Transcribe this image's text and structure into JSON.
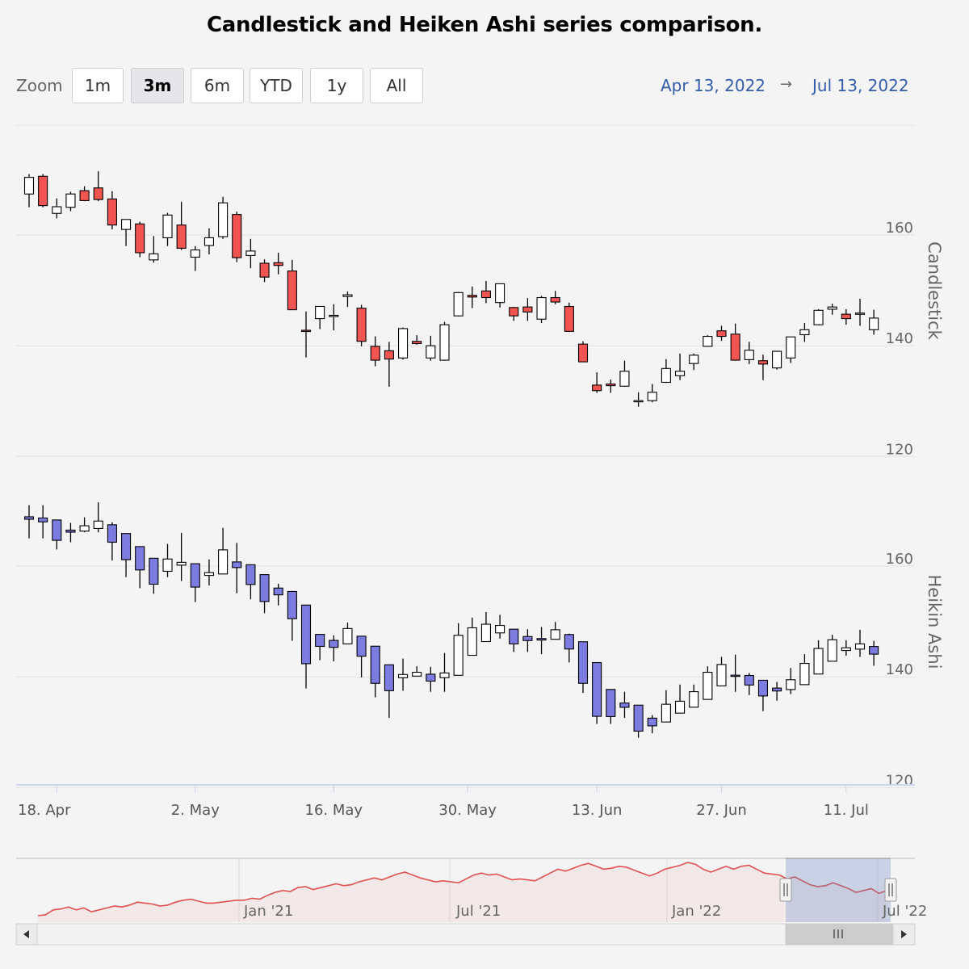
{
  "title": "Candlestick and Heiken Ashi series comparison.",
  "zoom": {
    "label": "Zoom",
    "buttons": [
      "1m",
      "3m",
      "6m",
      "YTD",
      "1y",
      "All"
    ],
    "active": "3m"
  },
  "range": {
    "from": "Apr 13, 2022",
    "arrow": "→",
    "to": "Jul 13, 2022"
  },
  "colors": {
    "down_candle": "#f25452",
    "down_ha": "#7c7ce0",
    "up": "#ffffff",
    "navigator_line": "#e05050",
    "navigator_mask": "#ccd6eb"
  },
  "chart_data": {
    "type": "candlestick",
    "panes": [
      {
        "name": "Candlestick",
        "y_ticks": [
          120,
          140,
          160
        ],
        "ylim": [
          120,
          175
        ]
      },
      {
        "name": "Heikin Ashi",
        "y_ticks": [
          120,
          140,
          160
        ],
        "ylim": [
          120,
          175
        ]
      }
    ],
    "x_ticks": [
      "18. Apr",
      "2. May",
      "16. May",
      "30. May",
      "13. Jun",
      "27. Jun",
      "11. Jul"
    ],
    "dates": [
      "2022-04-13",
      "2022-04-14",
      "2022-04-18",
      "2022-04-19",
      "2022-04-20",
      "2022-04-21",
      "2022-04-22",
      "2022-04-25",
      "2022-04-26",
      "2022-04-27",
      "2022-04-28",
      "2022-04-29",
      "2022-05-02",
      "2022-05-03",
      "2022-05-04",
      "2022-05-05",
      "2022-05-06",
      "2022-05-09",
      "2022-05-10",
      "2022-05-11",
      "2022-05-12",
      "2022-05-13",
      "2022-05-16",
      "2022-05-17",
      "2022-05-18",
      "2022-05-19",
      "2022-05-20",
      "2022-05-23",
      "2022-05-24",
      "2022-05-25",
      "2022-05-26",
      "2022-05-27",
      "2022-05-31",
      "2022-06-01",
      "2022-06-02",
      "2022-06-03",
      "2022-06-06",
      "2022-06-07",
      "2022-06-08",
      "2022-06-09",
      "2022-06-10",
      "2022-06-13",
      "2022-06-14",
      "2022-06-15",
      "2022-06-16",
      "2022-06-17",
      "2022-06-21",
      "2022-06-22",
      "2022-06-23",
      "2022-06-24",
      "2022-06-27",
      "2022-06-28",
      "2022-06-29",
      "2022-06-30",
      "2022-07-01",
      "2022-07-05",
      "2022-07-06",
      "2022-07-07",
      "2022-07-08",
      "2022-07-11",
      "2022-07-12",
      "2022-07-13"
    ],
    "ohlc": [
      [
        167.4,
        171.0,
        165.0,
        170.4
      ],
      [
        170.6,
        171.0,
        165.0,
        165.3
      ],
      [
        163.9,
        166.6,
        163.0,
        165.1
      ],
      [
        165.0,
        167.8,
        164.3,
        167.4
      ],
      [
        168.0,
        168.8,
        166.1,
        166.2
      ],
      [
        168.5,
        171.5,
        166.1,
        166.4
      ],
      [
        166.5,
        167.9,
        161.0,
        161.8
      ],
      [
        161.0,
        162.8,
        158.0,
        162.8
      ],
      [
        162.0,
        162.4,
        156.0,
        156.8
      ],
      [
        155.5,
        159.8,
        155.0,
        156.6
      ],
      [
        159.5,
        164.0,
        158.0,
        163.6
      ],
      [
        161.8,
        166.0,
        157.3,
        157.6
      ],
      [
        156.0,
        158.0,
        153.5,
        157.3
      ],
      [
        158.1,
        161.2,
        156.5,
        159.5
      ],
      [
        159.7,
        166.9,
        159.3,
        165.8
      ],
      [
        163.7,
        164.2,
        155.1,
        155.9
      ],
      [
        156.3,
        159.3,
        154.0,
        157.1
      ],
      [
        154.9,
        155.6,
        151.5,
        152.4
      ],
      [
        155.0,
        156.8,
        152.9,
        154.5
      ],
      [
        153.5,
        155.5,
        146.5,
        146.5
      ],
      [
        142.8,
        146.2,
        137.9,
        142.6
      ],
      [
        144.9,
        147.0,
        143.0,
        147.1
      ],
      [
        145.5,
        147.5,
        142.8,
        145.5
      ],
      [
        148.9,
        149.8,
        147.0,
        149.2
      ],
      [
        146.8,
        147.4,
        139.9,
        140.8
      ],
      [
        139.9,
        141.7,
        136.3,
        137.4
      ],
      [
        139.1,
        140.7,
        132.6,
        137.6
      ],
      [
        137.8,
        143.3,
        137.5,
        143.1
      ],
      [
        140.8,
        141.9,
        140.2,
        140.4
      ],
      [
        137.8,
        141.8,
        137.3,
        140.0
      ],
      [
        137.4,
        144.3,
        137.3,
        143.8
      ],
      [
        145.4,
        149.7,
        145.3,
        149.6
      ],
      [
        149.1,
        150.7,
        146.8,
        148.8
      ],
      [
        149.9,
        151.7,
        147.7,
        148.7
      ],
      [
        147.8,
        151.2,
        146.9,
        151.2
      ],
      [
        146.9,
        147.0,
        144.5,
        145.4
      ],
      [
        147.0,
        148.6,
        144.5,
        146.1
      ],
      [
        144.8,
        149.0,
        144.1,
        148.7
      ],
      [
        148.7,
        149.9,
        147.5,
        147.9
      ],
      [
        147.1,
        147.8,
        142.6,
        142.6
      ],
      [
        140.3,
        140.8,
        137.1,
        137.1
      ],
      [
        132.9,
        135.2,
        131.5,
        131.9
      ],
      [
        133.1,
        133.9,
        131.5,
        132.8
      ],
      [
        132.7,
        137.3,
        132.6,
        135.4
      ],
      [
        130.1,
        131.6,
        129.0,
        130.1
      ],
      [
        130.1,
        133.1,
        129.8,
        131.6
      ],
      [
        133.4,
        137.6,
        133.3,
        135.9
      ],
      [
        134.6,
        138.6,
        133.8,
        135.4
      ],
      [
        136.8,
        138.6,
        135.6,
        138.3
      ],
      [
        139.9,
        141.9,
        139.8,
        141.7
      ],
      [
        142.7,
        143.6,
        140.9,
        141.7
      ],
      [
        142.1,
        144.0,
        137.3,
        137.4
      ],
      [
        137.5,
        140.7,
        136.7,
        139.2
      ],
      [
        137.3,
        138.4,
        133.8,
        136.7
      ],
      [
        136.0,
        139.1,
        135.7,
        139.0
      ],
      [
        137.8,
        141.6,
        136.9,
        141.6
      ],
      [
        142.0,
        144.1,
        140.7,
        142.9
      ],
      [
        143.8,
        146.6,
        143.7,
        146.4
      ],
      [
        146.6,
        147.6,
        145.6,
        147.0
      ],
      [
        145.7,
        146.6,
        143.8,
        144.9
      ],
      [
        145.8,
        148.5,
        143.6,
        145.9
      ],
      [
        142.9,
        146.5,
        142.0,
        145.0
      ]
    ]
  },
  "navigator": {
    "x_ticks": [
      "Jan '21",
      "Jul '21",
      "Jan '22",
      "Jul '22"
    ],
    "series": [
      120,
      121,
      126,
      127,
      129,
      126,
      128,
      124,
      126,
      128,
      130,
      129,
      131,
      134,
      133,
      132,
      130,
      131,
      134,
      136,
      137,
      135,
      133,
      133,
      134,
      135,
      136,
      136,
      138,
      137,
      141,
      144,
      146,
      145,
      149,
      150,
      147,
      149,
      151,
      153,
      151,
      152,
      155,
      157,
      159,
      157,
      160,
      163,
      165,
      162,
      159,
      157,
      155,
      156,
      155,
      154,
      158,
      162,
      164,
      162,
      163,
      160,
      157,
      158,
      157,
      156,
      160,
      164,
      168,
      166,
      169,
      172,
      174,
      171,
      168,
      169,
      171,
      170,
      167,
      164,
      161,
      164,
      168,
      170,
      172,
      175,
      173,
      168,
      165,
      168,
      171,
      168,
      171,
      172,
      168,
      164,
      163,
      162,
      158,
      160,
      156,
      152,
      150,
      151,
      154,
      151,
      148,
      144,
      146,
      148,
      143,
      146
    ]
  }
}
